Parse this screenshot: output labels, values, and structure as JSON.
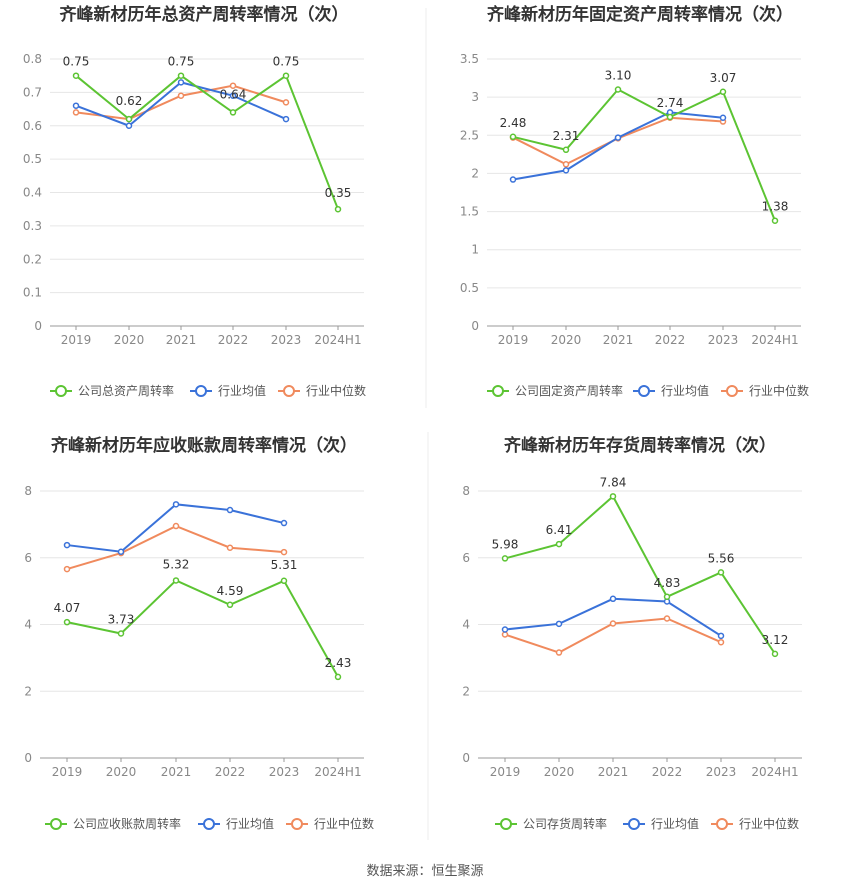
{
  "source": "数据来源：恒生聚源",
  "legend_labels": {
    "avg": "行业均值",
    "median": "行业中位数"
  },
  "colors": {
    "company": "#5cc433",
    "avg": "#3a72d9",
    "median": "#f08a5d",
    "grid": "#e6e6e6",
    "axis": "#999999"
  },
  "chart_data": [
    {
      "type": "line",
      "title": "齐峰新材历年总资产周转率情况（次）",
      "categories": [
        "2019",
        "2020",
        "2021",
        "2022",
        "2023",
        "2024H1"
      ],
      "ylim": [
        0,
        0.8
      ],
      "yticks": [
        "0",
        "0.1",
        "0.2",
        "0.3",
        "0.4",
        "0.5",
        "0.6",
        "0.7",
        "0.8"
      ],
      "grid": true,
      "legend_position": "bottom",
      "series": [
        {
          "key": "company",
          "name": "公司总资产周转率",
          "values": [
            0.75,
            0.62,
            0.75,
            0.64,
            0.75,
            0.35
          ],
          "labels": [
            "0.75",
            "0.62",
            "0.75",
            "0.64",
            "0.75",
            "0.35"
          ]
        },
        {
          "key": "avg",
          "name": "行业均值",
          "values": [
            0.66,
            0.6,
            0.73,
            0.69,
            0.62,
            null
          ]
        },
        {
          "key": "median",
          "name": "行业中位数",
          "values": [
            0.64,
            0.62,
            0.69,
            0.72,
            0.67,
            null
          ]
        }
      ]
    },
    {
      "type": "line",
      "title": "齐峰新材历年固定资产周转率情况（次）",
      "categories": [
        "2019",
        "2020",
        "2021",
        "2022",
        "2023",
        "2024H1"
      ],
      "ylim": [
        0,
        3.5
      ],
      "yticks": [
        "0",
        "0.5",
        "1",
        "1.5",
        "2",
        "2.5",
        "3",
        "3.5"
      ],
      "grid": true,
      "legend_position": "bottom",
      "series": [
        {
          "key": "company",
          "name": "公司固定资产周转率",
          "values": [
            2.48,
            2.31,
            3.1,
            2.74,
            3.07,
            1.38
          ],
          "labels": [
            "2.48",
            "2.31",
            "3.10",
            "2.74",
            "3.07",
            "1.38"
          ]
        },
        {
          "key": "avg",
          "name": "行业均值",
          "values": [
            1.92,
            2.04,
            2.47,
            2.8,
            2.73,
            null
          ]
        },
        {
          "key": "median",
          "name": "行业中位数",
          "values": [
            2.47,
            2.12,
            2.46,
            2.73,
            2.68,
            null
          ]
        }
      ]
    },
    {
      "type": "line",
      "title": "齐峰新材历年应收账款周转率情况（次）",
      "categories": [
        "2019",
        "2020",
        "2021",
        "2022",
        "2023",
        "2024H1"
      ],
      "ylim": [
        0,
        8
      ],
      "yticks": [
        "0",
        "2",
        "4",
        "6",
        "8"
      ],
      "grid": true,
      "legend_position": "bottom",
      "series": [
        {
          "key": "company",
          "name": "公司应收账款周转率",
          "values": [
            4.07,
            3.73,
            5.32,
            4.59,
            5.31,
            2.43
          ],
          "labels": [
            "4.07",
            "3.73",
            "5.32",
            "4.59",
            "5.31",
            "2.43"
          ]
        },
        {
          "key": "avg",
          "name": "行业均值",
          "values": [
            6.38,
            6.18,
            7.6,
            7.43,
            7.04,
            null
          ]
        },
        {
          "key": "median",
          "name": "行业中位数",
          "values": [
            5.66,
            6.14,
            6.95,
            6.3,
            6.17,
            null
          ]
        }
      ]
    },
    {
      "type": "line",
      "title": "齐峰新材历年存货周转率情况（次）",
      "categories": [
        "2019",
        "2020",
        "2021",
        "2022",
        "2023",
        "2024H1"
      ],
      "ylim": [
        0,
        8
      ],
      "yticks": [
        "0",
        "2",
        "4",
        "6",
        "8"
      ],
      "grid": true,
      "legend_position": "bottom",
      "series": [
        {
          "key": "company",
          "name": "公司存货周转率",
          "values": [
            5.98,
            6.41,
            7.84,
            4.83,
            5.56,
            3.12
          ],
          "labels": [
            "5.98",
            "6.41",
            "7.84",
            "4.83",
            "5.56",
            "3.12"
          ]
        },
        {
          "key": "avg",
          "name": "行业均值",
          "values": [
            3.85,
            4.02,
            4.77,
            4.69,
            3.66,
            null
          ]
        },
        {
          "key": "median",
          "name": "行业中位数",
          "values": [
            3.7,
            3.16,
            4.03,
            4.18,
            3.47,
            null
          ]
        }
      ]
    }
  ]
}
